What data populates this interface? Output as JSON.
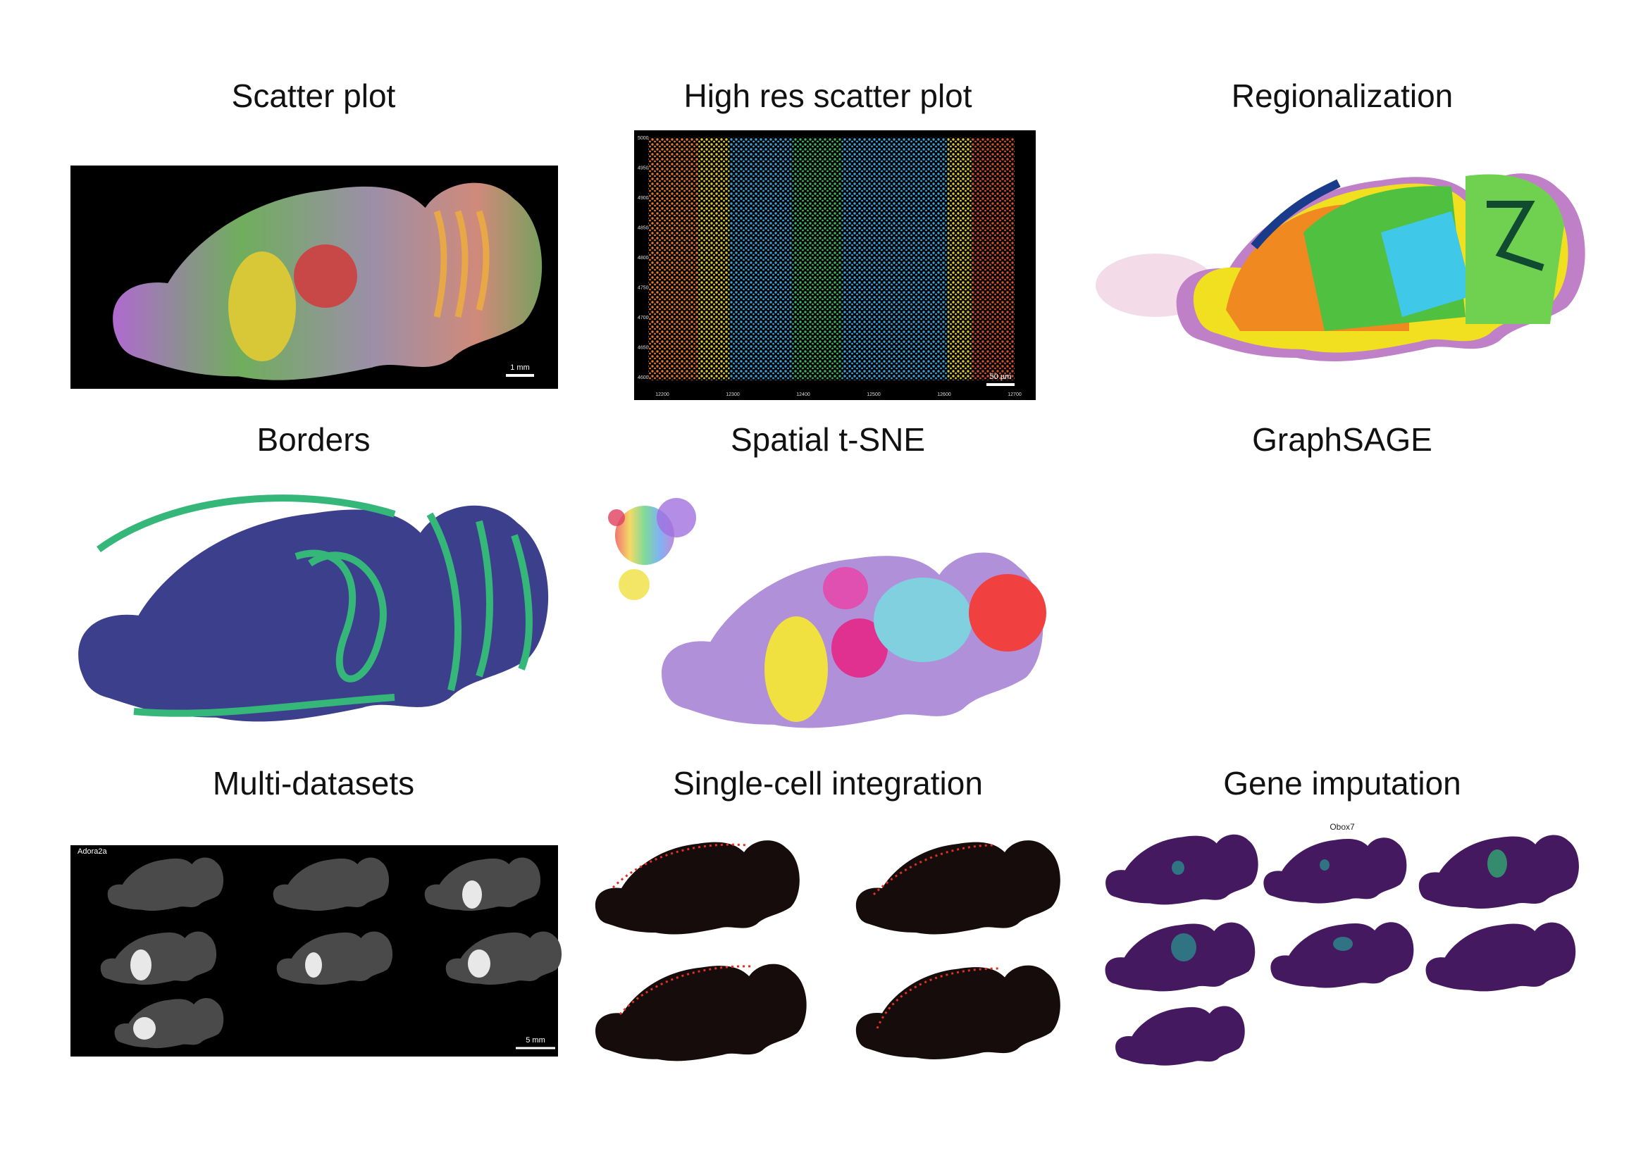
{
  "panels": [
    {
      "title": "Scatter plot",
      "scale_bar": "1 mm"
    },
    {
      "title": "High res scatter plot",
      "scale_bar": "50 µm",
      "yticks": [
        5000,
        4950,
        4900,
        4850,
        4800,
        4750,
        4700,
        4650,
        4600
      ],
      "xticks": [
        12200,
        12300,
        12400,
        12500,
        12600,
        12700
      ]
    },
    {
      "title": "Regionalization"
    },
    {
      "title": "Borders"
    },
    {
      "title": "Spatial t-SNE"
    },
    {
      "title": "GraphSAGE"
    },
    {
      "title": "Multi-datasets",
      "gene": "Adora2a",
      "scale_bar": "5 mm"
    },
    {
      "title": "Single-cell integration"
    },
    {
      "title": "Gene imputation",
      "gene": "Obox7"
    }
  ]
}
